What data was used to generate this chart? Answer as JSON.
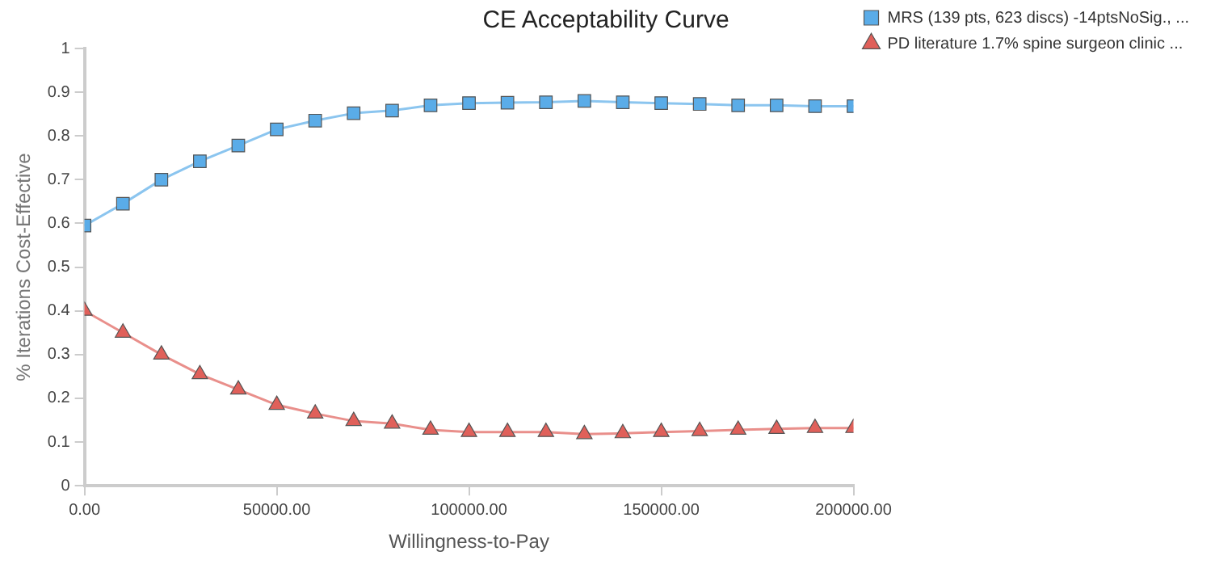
{
  "chart_data": {
    "type": "line",
    "title": "CE Acceptability Curve",
    "xlabel": "Willingness-to-Pay",
    "ylabel": "% Iterations Cost-Effective",
    "x": [
      0,
      10000,
      20000,
      30000,
      40000,
      50000,
      60000,
      70000,
      80000,
      90000,
      100000,
      110000,
      120000,
      130000,
      140000,
      150000,
      160000,
      170000,
      180000,
      190000,
      200000
    ],
    "series": [
      {
        "name": "MRS (139 pts, 623 discs) -14ptsNoSig., ...",
        "color": "#5aace8",
        "marker": "square",
        "values": [
          0.595,
          0.645,
          0.7,
          0.742,
          0.778,
          0.815,
          0.835,
          0.852,
          0.858,
          0.87,
          0.875,
          0.876,
          0.877,
          0.88,
          0.877,
          0.875,
          0.873,
          0.87,
          0.87,
          0.868,
          0.868
        ]
      },
      {
        "name": "PD literature 1.7% spine surgeon clinic ...",
        "color": "#e0605a",
        "marker": "triangle",
        "values": [
          0.4,
          0.35,
          0.3,
          0.255,
          0.22,
          0.185,
          0.165,
          0.148,
          0.142,
          0.128,
          0.123,
          0.123,
          0.123,
          0.118,
          0.12,
          0.123,
          0.125,
          0.128,
          0.13,
          0.132,
          0.132
        ]
      }
    ],
    "xlim": [
      0,
      200000
    ],
    "xticks": [
      {
        "value": 0,
        "label": "0.00"
      },
      {
        "value": 50000,
        "label": "50000.00"
      },
      {
        "value": 100000,
        "label": "100000.00"
      },
      {
        "value": 150000,
        "label": "150000.00"
      },
      {
        "value": 200000,
        "label": "200000.00"
      }
    ],
    "ylim": [
      0,
      1
    ],
    "yticks": [
      0,
      0.1,
      0.2,
      0.3,
      0.4,
      0.5,
      0.6,
      0.7,
      0.8,
      0.9,
      1
    ],
    "grid": false,
    "legend": "top right",
    "line_style": "solid"
  }
}
